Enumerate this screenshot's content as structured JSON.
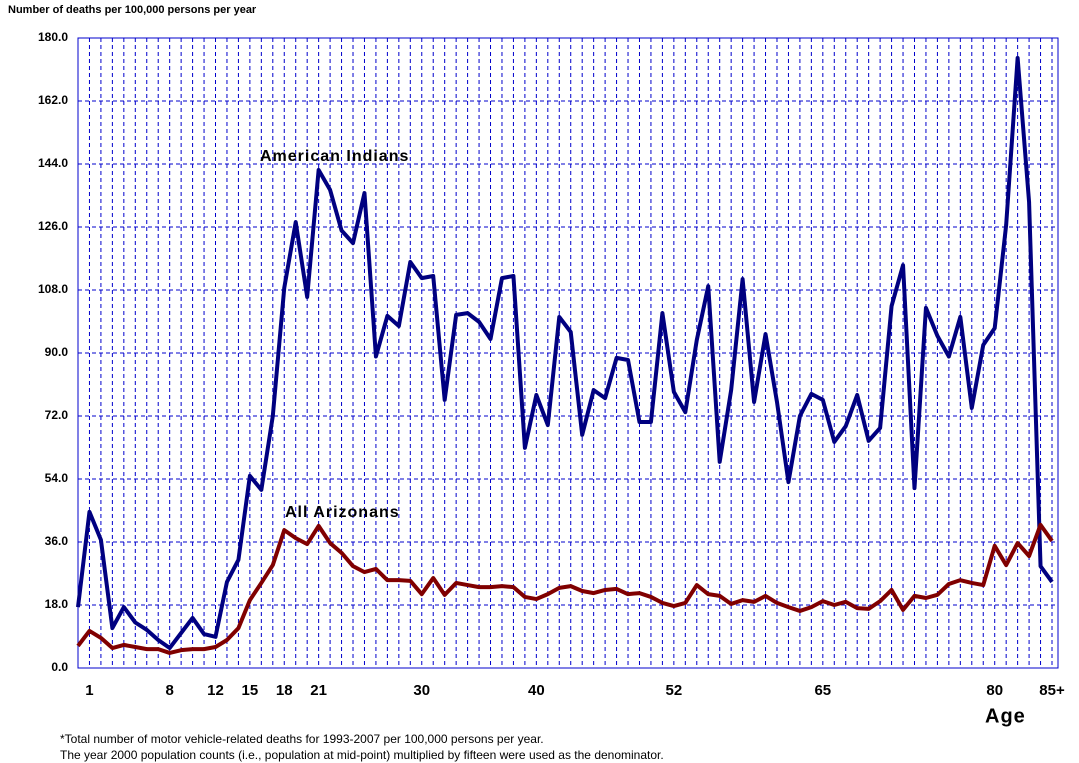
{
  "chart_data": {
    "type": "line",
    "y_label": "Number of deaths per 100,000 persons per year",
    "x_label": "Age",
    "footnotes": [
      "*Total number of motor vehicle-related deaths for 1993-2007 per 100,000 persons per year.",
      "The year 2000 population counts (i.e., population at mid-point) multiplied by fifteen were used as the denominator."
    ],
    "annotations": [
      {
        "text": "American Indians",
        "series": 0
      },
      {
        "text": "All Arizonans",
        "series": 1
      }
    ],
    "categories": [
      null,
      "1",
      null,
      null,
      null,
      null,
      null,
      null,
      "8",
      null,
      null,
      null,
      "12",
      null,
      null,
      "15",
      null,
      null,
      "18",
      null,
      null,
      "21",
      null,
      null,
      null,
      null,
      null,
      null,
      null,
      null,
      "30",
      null,
      null,
      null,
      null,
      null,
      null,
      null,
      null,
      null,
      "40",
      null,
      null,
      null,
      null,
      null,
      null,
      null,
      null,
      null,
      null,
      null,
      "52",
      null,
      null,
      null,
      null,
      null,
      null,
      null,
      null,
      null,
      null,
      null,
      null,
      "65",
      null,
      null,
      null,
      null,
      null,
      null,
      null,
      null,
      null,
      null,
      null,
      null,
      null,
      null,
      "80",
      null,
      null,
      null,
      null,
      "85+"
    ],
    "ylim": [
      0,
      180
    ],
    "yticks": [
      {
        "value": 0,
        "label": "0.0"
      },
      {
        "value": 18,
        "label": "18.0"
      },
      {
        "value": 36,
        "label": "36.0"
      },
      {
        "value": 54,
        "label": "54.0"
      },
      {
        "value": 72,
        "label": "72.0"
      },
      {
        "value": 90,
        "label": "90.0"
      },
      {
        "value": 108,
        "label": "108.0"
      },
      {
        "value": 126,
        "label": "126.0"
      },
      {
        "value": 144,
        "label": "144.0"
      },
      {
        "value": 162,
        "label": "162.0"
      },
      {
        "value": 180,
        "label": "180.0"
      }
    ],
    "grid": true,
    "series": [
      {
        "name": "American Indians",
        "color": "#000080",
        "values": [
          17.4,
          44.6,
          36.6,
          11.4,
          17.4,
          13,
          10.9,
          8,
          5.7,
          10,
          14.3,
          9.7,
          8.9,
          24.6,
          30.9,
          54.9,
          50.9,
          72,
          108.6,
          127.4,
          106,
          142.3,
          136.6,
          125,
          121.4,
          135.7,
          89,
          100.6,
          97.7,
          116,
          111.4,
          112,
          76.6,
          100.9,
          101.4,
          98.9,
          94,
          111.4,
          112,
          62.9,
          78,
          69.4,
          100.3,
          96,
          66.6,
          79.4,
          77.1,
          88.6,
          88,
          70.3,
          70.3,
          101.4,
          78.9,
          73.1,
          93.7,
          109.1,
          58.9,
          79.4,
          111.1,
          76,
          95.4,
          76,
          53.1,
          72,
          78.3,
          76.6,
          64.6,
          69.1,
          78,
          64.9,
          68.6,
          103.4,
          115.1,
          51.4,
          102.9,
          94.9,
          89,
          100.3,
          74.3,
          92.3,
          97.1,
          126.6,
          174.3,
          133.1,
          29.1,
          24.6
        ]
      },
      {
        "name": "All Arizonans",
        "color": "#800000",
        "values": [
          6.3,
          10.6,
          8.6,
          5.7,
          6.6,
          6,
          5.4,
          5.4,
          4.3,
          5.1,
          5.4,
          5.4,
          6,
          8,
          11.4,
          19.4,
          24.3,
          29.4,
          39.4,
          37.1,
          35.4,
          40.6,
          35.7,
          32.9,
          29.1,
          27.4,
          28.3,
          25.1,
          25.1,
          24.9,
          21.1,
          25.7,
          20.9,
          24.3,
          23.7,
          23.1,
          23.1,
          23.4,
          23.1,
          20.3,
          19.7,
          21.1,
          22.9,
          23.4,
          22,
          21.4,
          22.3,
          22.6,
          21.1,
          21.4,
          20.3,
          18.6,
          17.7,
          18.6,
          23.7,
          21.1,
          20.6,
          18.3,
          19.4,
          18.9,
          20.6,
          18.6,
          17.4,
          16.3,
          17.4,
          19.1,
          18,
          18.9,
          17.1,
          16.9,
          19.1,
          22.3,
          16.6,
          20.6,
          20,
          20.9,
          24,
          25.1,
          24.3,
          23.7,
          34.9,
          29.4,
          35.7,
          32,
          40.9,
          36.3
        ]
      }
    ]
  }
}
